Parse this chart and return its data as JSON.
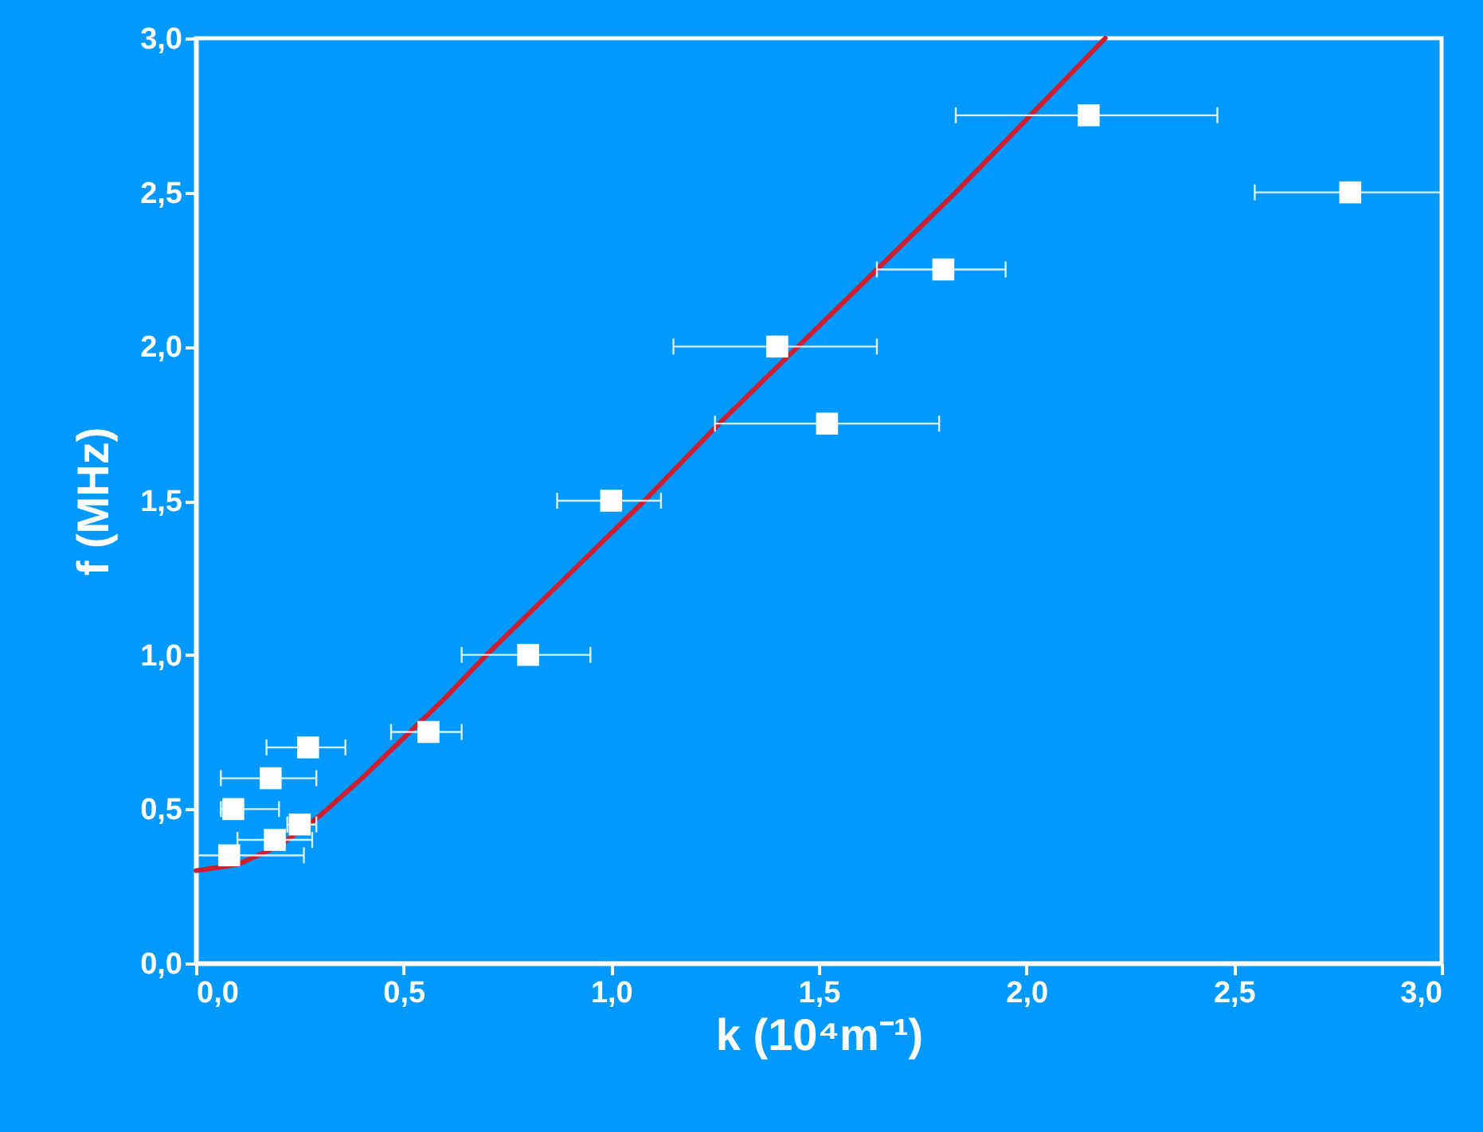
{
  "chart_data": {
    "type": "scatter",
    "xlabel": "k (10⁴m⁻¹)",
    "ylabel": "f (MHz)",
    "xlim": [
      0,
      3
    ],
    "ylim": [
      0,
      3
    ],
    "xticks": [
      {
        "value": 0,
        "label": "0,0"
      },
      {
        "value": 0.5,
        "label": "0,5"
      },
      {
        "value": 1,
        "label": "1,0"
      },
      {
        "value": 1.5,
        "label": "1,5"
      },
      {
        "value": 2,
        "label": "2,0"
      },
      {
        "value": 2.5,
        "label": "2,5"
      },
      {
        "value": 3,
        "label": "3,0"
      }
    ],
    "yticks": [
      {
        "value": 0,
        "label": "0,0"
      },
      {
        "value": 0.5,
        "label": "0,5"
      },
      {
        "value": 1,
        "label": "1,0"
      },
      {
        "value": 1.5,
        "label": "1,5"
      },
      {
        "value": 2,
        "label": "2,0"
      },
      {
        "value": 2.5,
        "label": "2,5"
      },
      {
        "value": 3,
        "label": "3,0"
      }
    ],
    "marker": "square",
    "grid": false,
    "series": [
      {
        "type": "line",
        "color": "#cc1e2e",
        "marker": "none",
        "x": [
          0,
          0.1,
          0.2,
          0.3,
          0.4,
          0.5,
          0.6,
          0.7,
          0.89,
          1.08,
          1.26,
          1.45,
          1.64,
          1.83,
          2.01,
          2.19
        ],
        "values": [
          0.3,
          0.32,
          0.38,
          0.48,
          0.6,
          0.73,
          0.86,
          1.0,
          1.25,
          1.5,
          1.75,
          2.0,
          2.25,
          2.5,
          2.75,
          3.0
        ]
      },
      {
        "color": "#ffffff",
        "x": [
          0.08,
          0.09,
          0.18,
          0.27,
          0.19,
          0.25,
          0.56,
          0.8,
          1.0,
          1.52,
          1.4,
          1.8,
          2.15,
          2.78
        ],
        "values": [
          0.35,
          0.5,
          0.6,
          0.7,
          0.4,
          0.45,
          0.75,
          1.0,
          1.5,
          1.75,
          2.0,
          2.25,
          2.75,
          2.5
        ],
        "xerrors": [
          [
            0,
            0.26
          ],
          [
            0.06,
            0.2
          ],
          [
            0.06,
            0.29
          ],
          [
            0.17,
            0.36
          ],
          [
            0.1,
            0.28
          ],
          [
            0.22,
            0.29
          ],
          [
            0.47,
            0.64
          ],
          [
            0.64,
            0.95
          ],
          [
            0.87,
            1.12
          ],
          [
            1.25,
            1.79
          ],
          [
            1.15,
            1.64
          ],
          [
            1.64,
            1.95
          ],
          [
            1.83,
            2.46
          ],
          [
            2.55,
            3.0
          ]
        ]
      }
    ]
  }
}
